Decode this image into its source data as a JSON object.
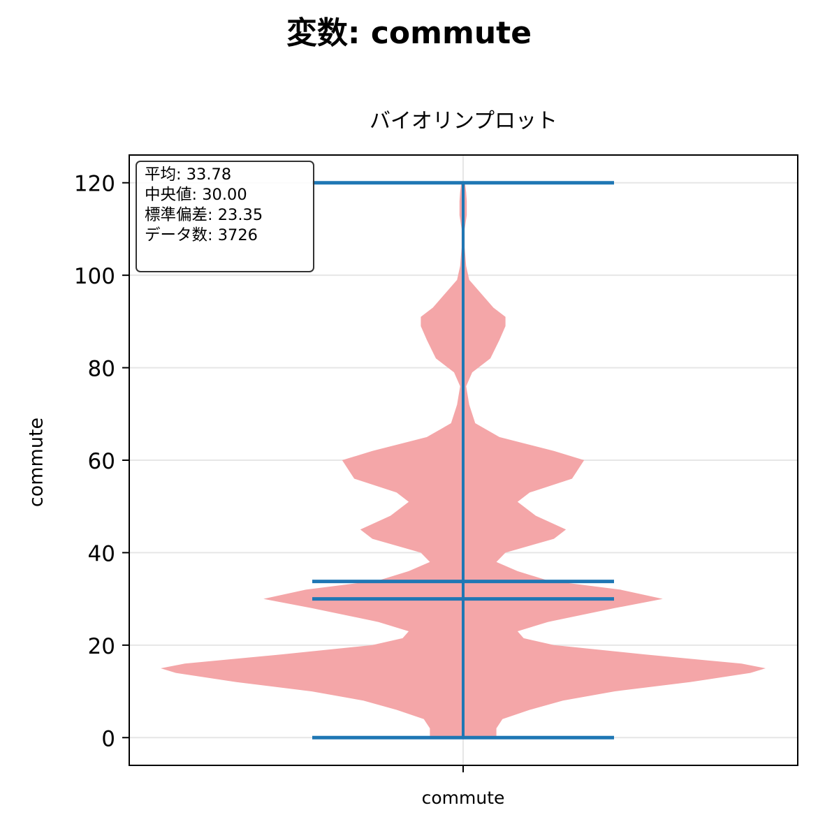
{
  "figure": {
    "suptitle": "変数: commute"
  },
  "stats": {
    "mean": "平均: 33.78",
    "median": "中央値: 30.00",
    "std": "標準偏差: 23.35",
    "count": "データ数: 3726"
  },
  "colors": {
    "violin_fill": "#f4a6a8",
    "lines": "#1f77b4",
    "grid": "#e6e6e6"
  },
  "chart_data": {
    "type": "violin",
    "title": "バイオリンプロット",
    "xlabel": "",
    "ylabel": "commute",
    "categories": [
      "commute"
    ],
    "ylim": [
      -6,
      126
    ],
    "yticks": [
      0,
      20,
      40,
      60,
      80,
      100,
      120
    ],
    "grid": true,
    "legend": "none",
    "series": [
      {
        "min": 0,
        "max": 120,
        "mean": 33.78,
        "median": 30.0,
        "density_profile": [
          [
            0,
            0.11
          ],
          [
            2,
            0.11
          ],
          [
            4,
            0.13
          ],
          [
            6,
            0.22
          ],
          [
            8,
            0.33
          ],
          [
            10,
            0.5
          ],
          [
            12,
            0.75
          ],
          [
            14,
            0.95
          ],
          [
            15,
            1.0
          ],
          [
            16,
            0.92
          ],
          [
            18,
            0.6
          ],
          [
            20,
            0.3
          ],
          [
            21.5,
            0.2
          ],
          [
            23,
            0.18
          ],
          [
            25,
            0.28
          ],
          [
            28,
            0.5
          ],
          [
            30,
            0.66
          ],
          [
            32,
            0.52
          ],
          [
            34,
            0.28
          ],
          [
            36,
            0.18
          ],
          [
            38,
            0.11
          ],
          [
            40,
            0.14
          ],
          [
            43,
            0.3
          ],
          [
            45,
            0.34
          ],
          [
            48,
            0.24
          ],
          [
            51,
            0.18
          ],
          [
            53,
            0.22
          ],
          [
            56,
            0.36
          ],
          [
            60,
            0.4
          ],
          [
            62,
            0.3
          ],
          [
            65,
            0.12
          ],
          [
            68,
            0.04
          ],
          [
            72,
            0.02
          ],
          [
            76,
            0.01
          ],
          [
            79,
            0.03
          ],
          [
            82,
            0.09
          ],
          [
            86,
            0.12
          ],
          [
            89,
            0.14
          ],
          [
            91,
            0.14
          ],
          [
            93,
            0.1
          ],
          [
            96,
            0.06
          ],
          [
            99,
            0.02
          ],
          [
            102,
            0.01
          ],
          [
            106,
            0.005
          ],
          [
            110,
            0.005
          ],
          [
            113,
            0.012
          ],
          [
            116,
            0.012
          ],
          [
            118,
            0.01
          ],
          [
            120,
            0.006
          ]
        ]
      }
    ]
  }
}
